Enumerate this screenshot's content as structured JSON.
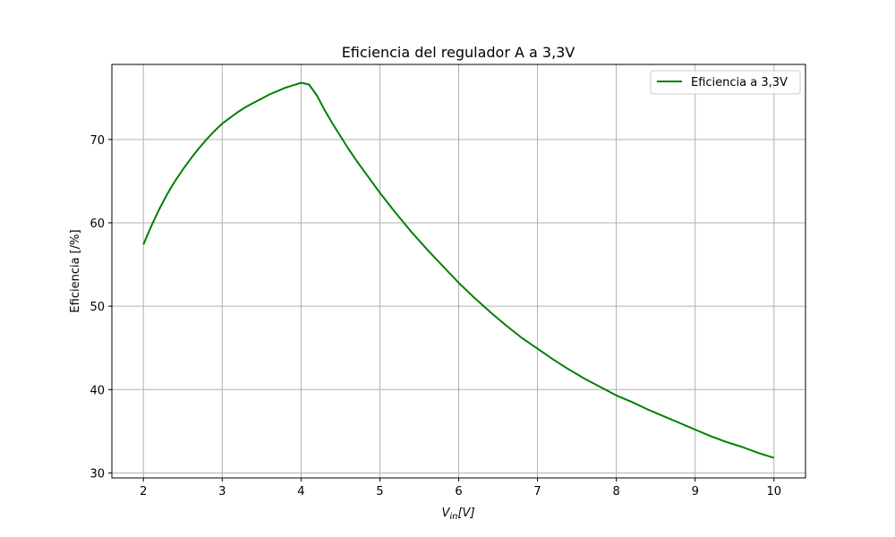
{
  "chart_data": {
    "type": "line",
    "title": "Eficiencia del regulador A a 3,3V",
    "xlabel_main": "V",
    "xlabel_sub": "in",
    "xlabel_tail": "[V]",
    "ylabel": "Eficiencia [/%]",
    "xlim": [
      1.6,
      10.4
    ],
    "ylim": [
      29.4,
      79.0
    ],
    "xticks": [
      2,
      3,
      4,
      5,
      6,
      7,
      8,
      9,
      10
    ],
    "yticks": [
      30,
      40,
      50,
      60,
      70
    ],
    "grid": true,
    "legend_position": "top-right",
    "series": [
      {
        "name": "Eficiencia a 3,3V",
        "color": "#008000",
        "x": [
          2.0,
          2.1,
          2.2,
          2.3,
          2.4,
          2.5,
          2.6,
          2.7,
          2.8,
          2.9,
          3.0,
          3.1,
          3.2,
          3.3,
          3.4,
          3.5,
          3.6,
          3.7,
          3.8,
          3.9,
          4.0,
          4.1,
          4.2,
          4.3,
          4.4,
          4.5,
          4.6,
          4.7,
          4.8,
          4.9,
          5.0,
          5.2,
          5.4,
          5.6,
          5.8,
          6.0,
          6.2,
          6.4,
          6.6,
          6.8,
          7.0,
          7.2,
          7.4,
          7.6,
          7.8,
          8.0,
          8.2,
          8.4,
          8.6,
          8.8,
          9.0,
          9.2,
          9.4,
          9.6,
          9.8,
          10.0
        ],
        "y": [
          57.4,
          59.6,
          61.6,
          63.4,
          65.0,
          66.4,
          67.7,
          68.9,
          70.0,
          71.0,
          71.9,
          72.6,
          73.3,
          73.9,
          74.4,
          74.9,
          75.4,
          75.8,
          76.2,
          76.5,
          76.8,
          76.6,
          75.3,
          73.5,
          71.9,
          70.4,
          68.9,
          67.5,
          66.2,
          64.9,
          63.6,
          61.2,
          58.9,
          56.8,
          54.8,
          52.8,
          51.0,
          49.3,
          47.7,
          46.2,
          44.9,
          43.6,
          42.4,
          41.3,
          40.3,
          39.3,
          38.5,
          37.6,
          36.8,
          36.0,
          35.2,
          34.4,
          33.7,
          33.1,
          32.4,
          31.8
        ]
      }
    ]
  }
}
